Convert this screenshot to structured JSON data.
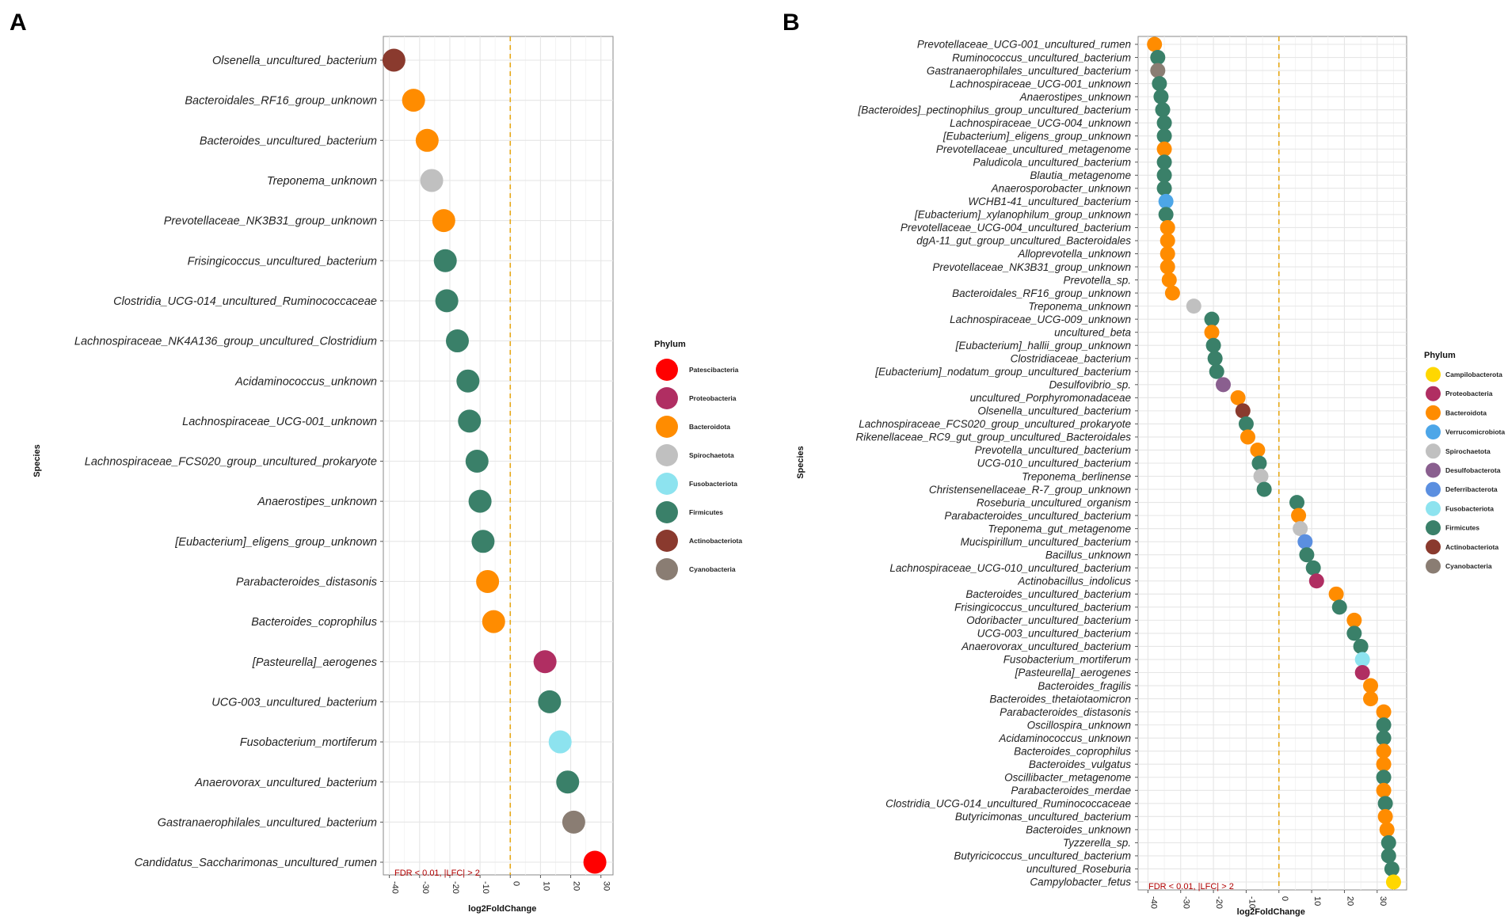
{
  "colors": {
    "Patescibacteria": "#ff0000",
    "Proteobacteria": "#b02e62",
    "Bacteroidota": "#ff8c00",
    "Spirochaetota": "#c0c0c0",
    "Fusobacteriota": "#8de3ef",
    "Firmicutes": "#3a8069",
    "Actinobacteriota": "#8a3a2e",
    "Cyanobacteria": "#8a7d73",
    "Campilobacterota": "#ffd700",
    "Verrucomicrobiota": "#4da6e8",
    "Desulfobacterota": "#8a5f8f",
    "Deferribacterota": "#5b8fe0",
    "zero_line": "#e6a817",
    "annotation": "#b00000"
  },
  "chart_data": [
    {
      "panel": "A",
      "type": "scatter",
      "xlabel": "log2FoldChange",
      "ylabel": "Species",
      "xlim": [
        -42,
        34
      ],
      "x_ticks": [
        -40,
        -30,
        -20,
        -10,
        0,
        10,
        20,
        30
      ],
      "annotation": "FDR < 0.01, |LFC| > 2",
      "legend_title": "Phylum",
      "legend": [
        "Patescibacteria",
        "Proteobacteria",
        "Bacteroidota",
        "Spirochaetota",
        "Fusobacteriota",
        "Firmicutes",
        "Actinobacteriota",
        "Cyanobacteria"
      ],
      "points": [
        {
          "species": "Olsenella_uncultured_bacterium",
          "lfc": -38.5,
          "phylum": "Actinobacteriota"
        },
        {
          "species": "Bacteroidales_RF16_group_unknown",
          "lfc": -32.0,
          "phylum": "Bacteroidota"
        },
        {
          "species": "Bacteroides_uncultured_bacterium",
          "lfc": -27.5,
          "phylum": "Bacteroidota"
        },
        {
          "species": "Treponema_unknown",
          "lfc": -26.0,
          "phylum": "Spirochaetota"
        },
        {
          "species": "Prevotellaceae_NK3B31_group_unknown",
          "lfc": -22.0,
          "phylum": "Bacteroidota"
        },
        {
          "species": "Frisingicoccus_uncultured_bacterium",
          "lfc": -21.5,
          "phylum": "Firmicutes"
        },
        {
          "species": "Clostridia_UCG-014_uncultured_Ruminococcaceae",
          "lfc": -21.0,
          "phylum": "Firmicutes"
        },
        {
          "species": "Lachnospiraceae_NK4A136_group_uncultured_Clostridium",
          "lfc": -17.5,
          "phylum": "Firmicutes"
        },
        {
          "species": "Acidaminococcus_unknown",
          "lfc": -14.0,
          "phylum": "Firmicutes"
        },
        {
          "species": "Lachnospiraceae_UCG-001_unknown",
          "lfc": -13.5,
          "phylum": "Firmicutes"
        },
        {
          "species": "Lachnospiraceae_FCS020_group_uncultured_prokaryote",
          "lfc": -11.0,
          "phylum": "Firmicutes"
        },
        {
          "species": "Anaerostipes_unknown",
          "lfc": -10.0,
          "phylum": "Firmicutes"
        },
        {
          "species": "[Eubacterium]_eligens_group_unknown",
          "lfc": -9.0,
          "phylum": "Firmicutes"
        },
        {
          "species": "Parabacteroides_distasonis",
          "lfc": -7.5,
          "phylum": "Bacteroidota"
        },
        {
          "species": "Bacteroides_coprophilus",
          "lfc": -5.5,
          "phylum": "Bacteroidota"
        },
        {
          "species": "[Pasteurella]_aerogenes",
          "lfc": 11.5,
          "phylum": "Proteobacteria"
        },
        {
          "species": "UCG-003_uncultured_bacterium",
          "lfc": 13.0,
          "phylum": "Firmicutes"
        },
        {
          "species": "Fusobacterium_mortiferum",
          "lfc": 16.5,
          "phylum": "Fusobacteriota"
        },
        {
          "species": "Anaerovorax_uncultured_bacterium",
          "lfc": 19.0,
          "phylum": "Firmicutes"
        },
        {
          "species": "Gastranaerophilales_uncultured_bacterium",
          "lfc": 21.0,
          "phylum": "Cyanobacteria"
        },
        {
          "species": "Candidatus_Saccharimonas_uncultured_rumen",
          "lfc": 28.0,
          "phylum": "Patescibacteria"
        }
      ]
    },
    {
      "panel": "B",
      "type": "scatter",
      "xlabel": "log2FoldChange",
      "ylabel": "Species",
      "xlim": [
        -43,
        39
      ],
      "x_ticks": [
        -40,
        -30,
        -20,
        -10,
        0,
        10,
        20,
        30
      ],
      "annotation": "FDR < 0.01, |LFC| > 2",
      "legend_title": "Phylum",
      "legend": [
        "Campilobacterota",
        "Proteobacteria",
        "Bacteroidota",
        "Verrucomicrobiota",
        "Spirochaetota",
        "Desulfobacterota",
        "Deferribacterota",
        "Fusobacteriota",
        "Firmicutes",
        "Actinobacteriota",
        "Cyanobacteria"
      ],
      "points": [
        {
          "species": "Prevotellaceae_UCG-001_uncultured_rumen",
          "lfc": -38.0,
          "phylum": "Bacteroidota"
        },
        {
          "species": "Ruminococcus_uncultured_bacterium",
          "lfc": -37.0,
          "phylum": "Firmicutes"
        },
        {
          "species": "Gastranaerophilales_uncultured_bacterium",
          "lfc": -37.0,
          "phylum": "Cyanobacteria"
        },
        {
          "species": "Lachnospiraceae_UCG-001_unknown",
          "lfc": -36.5,
          "phylum": "Firmicutes"
        },
        {
          "species": "Anaerostipes_unknown",
          "lfc": -36.0,
          "phylum": "Firmicutes"
        },
        {
          "species": "[Bacteroides]_pectinophilus_group_uncultured_bacterium",
          "lfc": -35.5,
          "phylum": "Firmicutes"
        },
        {
          "species": "Lachnospiraceae_UCG-004_unknown",
          "lfc": -35.0,
          "phylum": "Firmicutes"
        },
        {
          "species": "[Eubacterium]_eligens_group_unknown",
          "lfc": -35.0,
          "phylum": "Firmicutes"
        },
        {
          "species": "Prevotellaceae_uncultured_metagenome",
          "lfc": -35.0,
          "phylum": "Bacteroidota"
        },
        {
          "species": "Paludicola_uncultured_bacterium",
          "lfc": -35.0,
          "phylum": "Firmicutes"
        },
        {
          "species": "Blautia_metagenome",
          "lfc": -35.0,
          "phylum": "Firmicutes"
        },
        {
          "species": "Anaerosporobacter_unknown",
          "lfc": -35.0,
          "phylum": "Firmicutes"
        },
        {
          "species": "WCHB1-41_uncultured_bacterium",
          "lfc": -34.5,
          "phylum": "Verrucomicrobiota"
        },
        {
          "species": "[Eubacterium]_xylanophilum_group_unknown",
          "lfc": -34.5,
          "phylum": "Firmicutes"
        },
        {
          "species": "Prevotellaceae_UCG-004_uncultured_bacterium",
          "lfc": -34.0,
          "phylum": "Bacteroidota"
        },
        {
          "species": "dgA-11_gut_group_uncultured_Bacteroidales",
          "lfc": -34.0,
          "phylum": "Bacteroidota"
        },
        {
          "species": "Alloprevotella_unknown",
          "lfc": -34.0,
          "phylum": "Bacteroidota"
        },
        {
          "species": "Prevotellaceae_NK3B31_group_unknown",
          "lfc": -34.0,
          "phylum": "Bacteroidota"
        },
        {
          "species": "Prevotella_sp.",
          "lfc": -33.5,
          "phylum": "Bacteroidota"
        },
        {
          "species": "Bacteroidales_RF16_group_unknown",
          "lfc": -32.5,
          "phylum": "Bacteroidota"
        },
        {
          "species": "Treponema_unknown",
          "lfc": -26.0,
          "phylum": "Spirochaetota"
        },
        {
          "species": "Lachnospiraceae_UCG-009_unknown",
          "lfc": -20.5,
          "phylum": "Firmicutes"
        },
        {
          "species": "uncultured_beta",
          "lfc": -20.5,
          "phylum": "Bacteroidota"
        },
        {
          "species": "[Eubacterium]_hallii_group_unknown",
          "lfc": -20.0,
          "phylum": "Firmicutes"
        },
        {
          "species": "Clostridiaceae_bacterium",
          "lfc": -19.5,
          "phylum": "Firmicutes"
        },
        {
          "species": "[Eubacterium]_nodatum_group_uncultured_bacterium",
          "lfc": -19.0,
          "phylum": "Firmicutes"
        },
        {
          "species": "Desulfovibrio_sp.",
          "lfc": -17.0,
          "phylum": "Desulfobacterota"
        },
        {
          "species": "uncultured_Porphyromonadaceae",
          "lfc": -12.5,
          "phylum": "Bacteroidota"
        },
        {
          "species": "Olsenella_uncultured_bacterium",
          "lfc": -11.0,
          "phylum": "Actinobacteriota"
        },
        {
          "species": "Lachnospiraceae_FCS020_group_uncultured_prokaryote",
          "lfc": -10.0,
          "phylum": "Firmicutes"
        },
        {
          "species": "Rikenellaceae_RC9_gut_group_uncultured_Bacteroidales",
          "lfc": -9.5,
          "phylum": "Bacteroidota"
        },
        {
          "species": "Prevotella_uncultured_bacterium",
          "lfc": -6.5,
          "phylum": "Bacteroidota"
        },
        {
          "species": "UCG-010_uncultured_bacterium",
          "lfc": -6.0,
          "phylum": "Firmicutes"
        },
        {
          "species": "Treponema_berlinense",
          "lfc": -5.5,
          "phylum": "Spirochaetota"
        },
        {
          "species": "Christensenellaceae_R-7_group_unknown",
          "lfc": -4.5,
          "phylum": "Firmicutes"
        },
        {
          "species": "Roseburia_uncultured_organism",
          "lfc": 5.5,
          "phylum": "Firmicutes"
        },
        {
          "species": "Parabacteroides_uncultured_bacterium",
          "lfc": 6.0,
          "phylum": "Bacteroidota"
        },
        {
          "species": "Treponema_gut_metagenome",
          "lfc": 6.5,
          "phylum": "Spirochaetota"
        },
        {
          "species": "Mucispirillum_uncultured_bacterium",
          "lfc": 8.0,
          "phylum": "Deferribacterota"
        },
        {
          "species": "Bacillus_unknown",
          "lfc": 8.5,
          "phylum": "Firmicutes"
        },
        {
          "species": "Lachnospiraceae_UCG-010_uncultured_bacterium",
          "lfc": 10.5,
          "phylum": "Firmicutes"
        },
        {
          "species": "Actinobacillus_indolicus",
          "lfc": 11.5,
          "phylum": "Proteobacteria"
        },
        {
          "species": "Bacteroides_uncultured_bacterium",
          "lfc": 17.5,
          "phylum": "Bacteroidota"
        },
        {
          "species": "Frisingicoccus_uncultured_bacterium",
          "lfc": 18.5,
          "phylum": "Firmicutes"
        },
        {
          "species": "Odoribacter_uncultured_bacterium",
          "lfc": 23.0,
          "phylum": "Bacteroidota"
        },
        {
          "species": "UCG-003_uncultured_bacterium",
          "lfc": 23.0,
          "phylum": "Firmicutes"
        },
        {
          "species": "Anaerovorax_uncultured_bacterium",
          "lfc": 25.0,
          "phylum": "Firmicutes"
        },
        {
          "species": "Fusobacterium_mortiferum",
          "lfc": 25.5,
          "phylum": "Fusobacteriota"
        },
        {
          "species": "[Pasteurella]_aerogenes",
          "lfc": 25.5,
          "phylum": "Proteobacteria"
        },
        {
          "species": "Bacteroides_fragilis",
          "lfc": 28.0,
          "phylum": "Bacteroidota"
        },
        {
          "species": "Bacteroides_thetaiotaomicron",
          "lfc": 28.0,
          "phylum": "Bacteroidota"
        },
        {
          "species": "Parabacteroides_distasonis",
          "lfc": 32.0,
          "phylum": "Bacteroidota"
        },
        {
          "species": "Oscillospira_unknown",
          "lfc": 32.0,
          "phylum": "Firmicutes"
        },
        {
          "species": "Acidaminococcus_unknown",
          "lfc": 32.0,
          "phylum": "Firmicutes"
        },
        {
          "species": "Bacteroides_coprophilus",
          "lfc": 32.0,
          "phylum": "Bacteroidota"
        },
        {
          "species": "Bacteroides_vulgatus",
          "lfc": 32.0,
          "phylum": "Bacteroidota"
        },
        {
          "species": "Oscillibacter_metagenome",
          "lfc": 32.0,
          "phylum": "Firmicutes"
        },
        {
          "species": "Parabacteroides_merdae",
          "lfc": 32.0,
          "phylum": "Bacteroidota"
        },
        {
          "species": "Clostridia_UCG-014_uncultured_Ruminococcaceae",
          "lfc": 32.5,
          "phylum": "Firmicutes"
        },
        {
          "species": "Butyricimonas_uncultured_bacterium",
          "lfc": 32.5,
          "phylum": "Bacteroidota"
        },
        {
          "species": "Bacteroides_unknown",
          "lfc": 33.0,
          "phylum": "Bacteroidota"
        },
        {
          "species": "Tyzzerella_sp.",
          "lfc": 33.5,
          "phylum": "Firmicutes"
        },
        {
          "species": "Butyricicoccus_uncultured_bacterium",
          "lfc": 33.5,
          "phylum": "Firmicutes"
        },
        {
          "species": "uncultured_Roseburia",
          "lfc": 34.5,
          "phylum": "Firmicutes"
        },
        {
          "species": "Campylobacter_fetus",
          "lfc": 35.0,
          "phylum": "Campilobacterota"
        }
      ]
    }
  ]
}
